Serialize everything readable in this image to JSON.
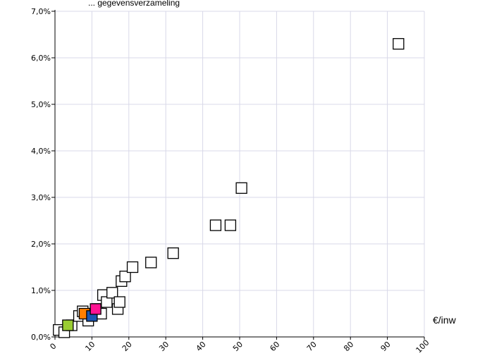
{
  "header": {
    "partial_text": "... gegevensverzameling"
  },
  "chart_data": {
    "type": "scatter",
    "title": "",
    "xlabel": "€/inw",
    "ylabel": "",
    "xlim": [
      0,
      100
    ],
    "ylim": [
      0,
      7.0
    ],
    "x_ticks": [
      0,
      10,
      20,
      30,
      40,
      50,
      60,
      70,
      80,
      90,
      100
    ],
    "y_ticks": [
      0.0,
      1.0,
      2.0,
      3.0,
      4.0,
      5.0,
      6.0,
      7.0
    ],
    "y_tick_labels": [
      "0,0%",
      "1,0%",
      "2,0%",
      "3,0%",
      "4,0%",
      "5,0%",
      "6,0%",
      "7,0%"
    ],
    "grid": true,
    "marker": "square",
    "points": [
      {
        "x": 1.0,
        "y": 0.15,
        "color": "#ffffff"
      },
      {
        "x": 2.5,
        "y": 0.1,
        "color": "#ffffff"
      },
      {
        "x": 4.5,
        "y": 0.25,
        "color": "#ffffff"
      },
      {
        "x": 6.5,
        "y": 0.45,
        "color": "#ffffff"
      },
      {
        "x": 7.5,
        "y": 0.55,
        "color": "#ffffff"
      },
      {
        "x": 9.0,
        "y": 0.35,
        "color": "#ffffff"
      },
      {
        "x": 11.5,
        "y": 0.6,
        "color": "#ffffff"
      },
      {
        "x": 12.5,
        "y": 0.5,
        "color": "#ffffff"
      },
      {
        "x": 13.0,
        "y": 0.9,
        "color": "#ffffff"
      },
      {
        "x": 14.0,
        "y": 0.75,
        "color": "#ffffff"
      },
      {
        "x": 15.5,
        "y": 0.95,
        "color": "#ffffff"
      },
      {
        "x": 17.0,
        "y": 0.6,
        "color": "#ffffff"
      },
      {
        "x": 17.5,
        "y": 0.75,
        "color": "#ffffff"
      },
      {
        "x": 18.0,
        "y": 1.2,
        "color": "#ffffff"
      },
      {
        "x": 19.0,
        "y": 1.3,
        "color": "#ffffff"
      },
      {
        "x": 21.0,
        "y": 1.5,
        "color": "#ffffff"
      },
      {
        "x": 26.0,
        "y": 1.6,
        "color": "#ffffff"
      },
      {
        "x": 32.0,
        "y": 1.8,
        "color": "#ffffff"
      },
      {
        "x": 43.5,
        "y": 2.4,
        "color": "#ffffff"
      },
      {
        "x": 47.5,
        "y": 2.4,
        "color": "#ffffff"
      },
      {
        "x": 50.5,
        "y": 3.2,
        "color": "#ffffff"
      },
      {
        "x": 93.0,
        "y": 6.3,
        "color": "#ffffff"
      },
      {
        "x": 3.5,
        "y": 0.25,
        "color": "#9acd32"
      },
      {
        "x": 8.0,
        "y": 0.5,
        "color": "#ff7f00"
      },
      {
        "x": 10.0,
        "y": 0.45,
        "color": "#1a56b3"
      },
      {
        "x": 11.0,
        "y": 0.6,
        "color": "#ff1493"
      }
    ],
    "colors": {
      "grid": "#d8d8e8",
      "axis": "#000000",
      "marker_stroke": "#000000"
    }
  }
}
